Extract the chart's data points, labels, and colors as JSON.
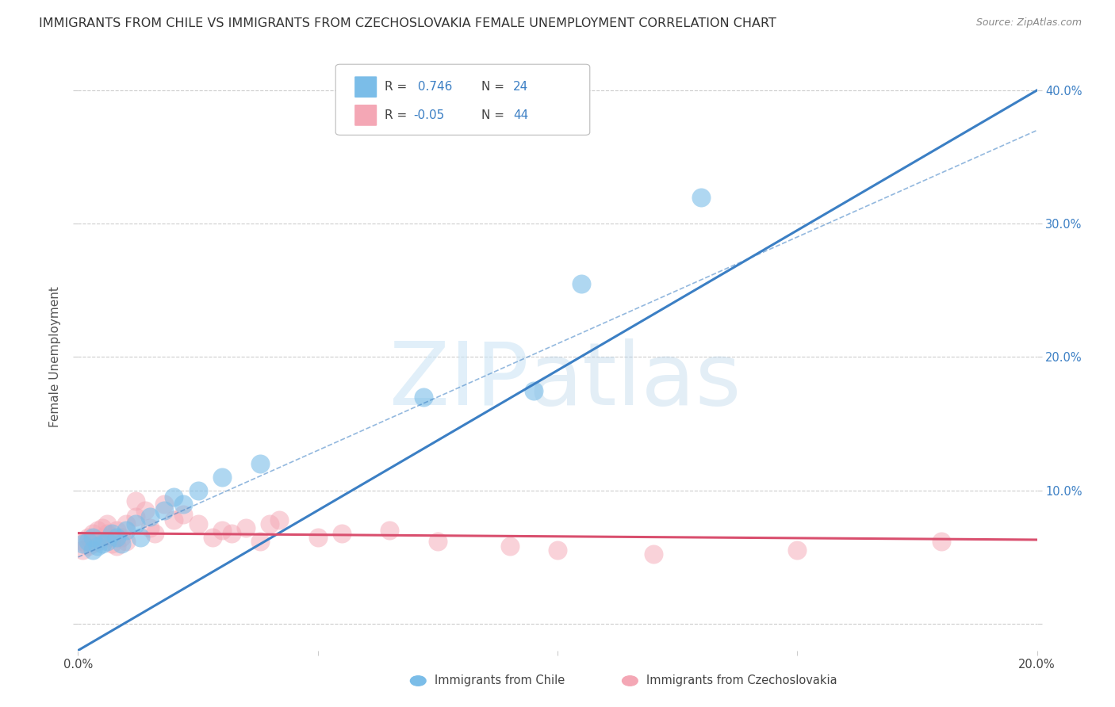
{
  "title": "IMMIGRANTS FROM CHILE VS IMMIGRANTS FROM CZECHOSLOVAKIA FEMALE UNEMPLOYMENT CORRELATION CHART",
  "source": "Source: ZipAtlas.com",
  "ylabel": "Female Unemployment",
  "xlim": [
    0.0,
    0.2
  ],
  "ylim": [
    -0.02,
    0.42
  ],
  "xticks": [
    0.0,
    0.05,
    0.1,
    0.15,
    0.2
  ],
  "xtick_labels": [
    "0.0%",
    "",
    "",
    "",
    "20.0%"
  ],
  "yticks": [
    0.0,
    0.1,
    0.2,
    0.3,
    0.4
  ],
  "ytick_labels_right": [
    "",
    "10.0%",
    "20.0%",
    "30.0%",
    "40.0%"
  ],
  "legend_labels": [
    "Immigrants from Chile",
    "Immigrants from Czechoslovakia"
  ],
  "r_chile": 0.746,
  "n_chile": 24,
  "r_czech": -0.05,
  "n_czech": 44,
  "color_chile": "#7bbde8",
  "color_czech": "#f4a7b5",
  "color_chile_line": "#3b7fc4",
  "color_czech_line": "#d94f6e",
  "chile_scatter_x": [
    0.001,
    0.002,
    0.003,
    0.003,
    0.004,
    0.005,
    0.006,
    0.007,
    0.008,
    0.009,
    0.01,
    0.012,
    0.013,
    0.015,
    0.018,
    0.02,
    0.022,
    0.025,
    0.03,
    0.038,
    0.072,
    0.095,
    0.105,
    0.13
  ],
  "chile_scatter_y": [
    0.06,
    0.062,
    0.065,
    0.055,
    0.058,
    0.06,
    0.062,
    0.068,
    0.065,
    0.06,
    0.07,
    0.075,
    0.065,
    0.08,
    0.085,
    0.095,
    0.09,
    0.1,
    0.11,
    0.12,
    0.17,
    0.175,
    0.255,
    0.32
  ],
  "czech_scatter_x": [
    0.001,
    0.001,
    0.002,
    0.002,
    0.003,
    0.003,
    0.004,
    0.004,
    0.005,
    0.005,
    0.006,
    0.006,
    0.007,
    0.007,
    0.008,
    0.008,
    0.009,
    0.01,
    0.01,
    0.012,
    0.012,
    0.014,
    0.015,
    0.016,
    0.018,
    0.02,
    0.022,
    0.025,
    0.028,
    0.03,
    0.032,
    0.035,
    0.038,
    0.04,
    0.042,
    0.05,
    0.055,
    0.065,
    0.075,
    0.09,
    0.1,
    0.12,
    0.15,
    0.18
  ],
  "czech_scatter_y": [
    0.055,
    0.062,
    0.058,
    0.065,
    0.06,
    0.068,
    0.062,
    0.07,
    0.065,
    0.072,
    0.068,
    0.075,
    0.06,
    0.065,
    0.058,
    0.07,
    0.065,
    0.062,
    0.075,
    0.08,
    0.092,
    0.085,
    0.072,
    0.068,
    0.09,
    0.078,
    0.082,
    0.075,
    0.065,
    0.07,
    0.068,
    0.072,
    0.062,
    0.075,
    0.078,
    0.065,
    0.068,
    0.07,
    0.062,
    0.058,
    0.055,
    0.052,
    0.055,
    0.062
  ],
  "chile_line_x0": 0.0,
  "chile_line_y0": -0.02,
  "chile_line_x1": 0.2,
  "chile_line_y1": 0.4,
  "chile_ci_line_x0": 0.0,
  "chile_ci_line_y0": 0.05,
  "chile_ci_line_x1": 0.2,
  "chile_ci_line_y1": 0.37,
  "czech_line_x0": 0.0,
  "czech_line_y0": 0.068,
  "czech_line_x1": 0.2,
  "czech_line_y1": 0.063,
  "grid_color": "#cccccc",
  "background_color": "#ffffff",
  "title_fontsize": 11.5,
  "axis_label_fontsize": 11,
  "tick_fontsize": 10.5,
  "legend_fontsize": 11
}
